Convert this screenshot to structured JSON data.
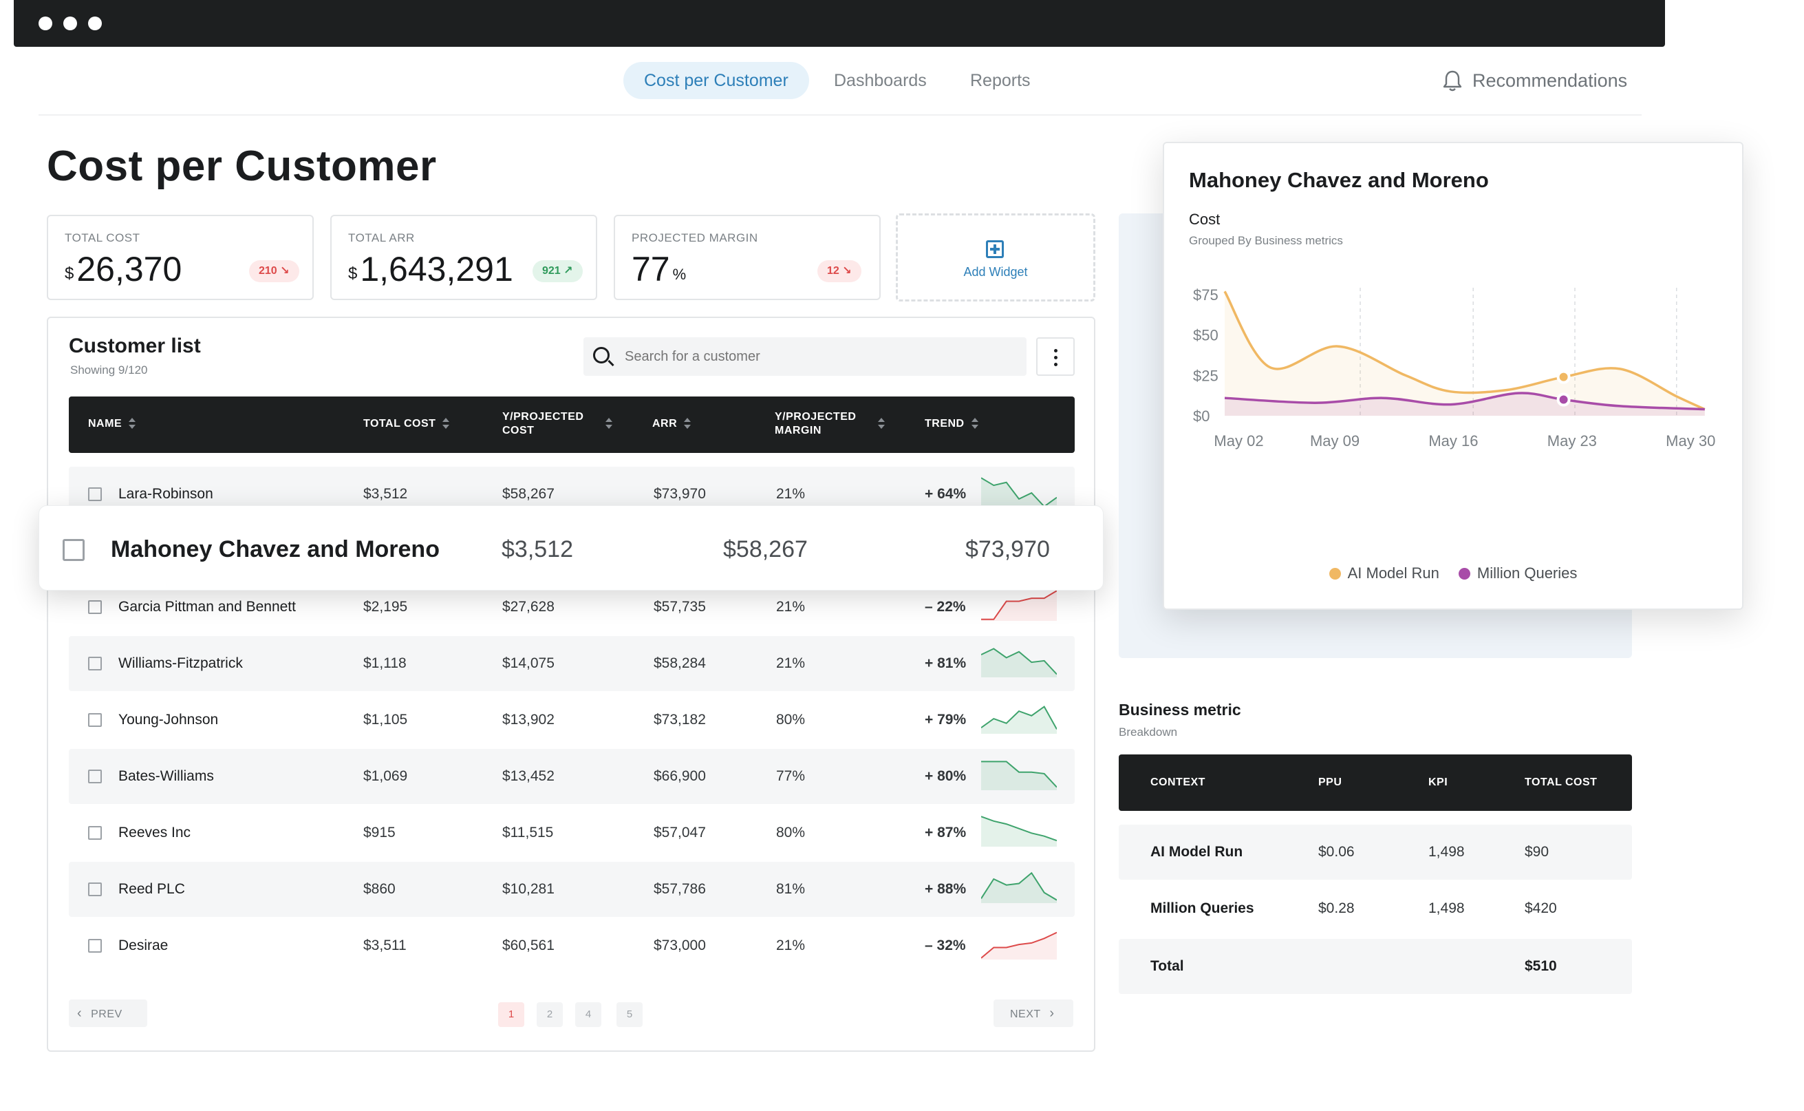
{
  "nav": {
    "tabs": [
      "Cost per Customer",
      "Dashboards",
      "Reports"
    ],
    "recommendations": "Recommendations"
  },
  "page": {
    "title": "Cost per Customer"
  },
  "stats": {
    "total_cost": {
      "label": "TOTAL COST",
      "currency": "$",
      "value": "26,370",
      "badge": "210",
      "trend": "down"
    },
    "total_arr": {
      "label": "TOTAL ARR",
      "currency": "$",
      "value": "1,643,291",
      "badge": "921",
      "trend": "up"
    },
    "projected_margin": {
      "label": "PROJECTED MARGIN",
      "value": "77",
      "unit": "%",
      "badge": "12",
      "trend": "down"
    },
    "add_widget": "Add Widget"
  },
  "customer_list": {
    "title": "Customer list",
    "showing": "Showing 9/120",
    "search_placeholder": "Search for a customer",
    "columns": [
      "NAME",
      "TOTAL COST",
      "Y/PROJECTED COST",
      "ARR",
      "Y/PROJECTED MARGIN",
      "TREND"
    ],
    "rows": [
      {
        "name": "Lara-Robinson",
        "total_cost": "$3,512",
        "projected_cost": "$58,267",
        "arr": "$73,970",
        "margin": "21%",
        "trend": "+ 64%",
        "dir": "pos",
        "spark": [
          40,
          30,
          34,
          12,
          20,
          2,
          14
        ]
      },
      {
        "name": "Garcia Pittman and Bennett",
        "total_cost": "$2,195",
        "projected_cost": "$27,628",
        "arr": "$57,735",
        "margin": "21%",
        "trend": "– 22%",
        "dir": "neg",
        "spark": [
          2,
          2,
          26,
          26,
          30,
          30,
          40
        ]
      },
      {
        "name": "Williams-Fitzpatrick",
        "total_cost": "$1,118",
        "projected_cost": "$14,075",
        "arr": "$58,284",
        "margin": "21%",
        "trend": "+ 81%",
        "dir": "pos",
        "spark": [
          30,
          38,
          26,
          34,
          20,
          22,
          4
        ]
      },
      {
        "name": "Young-Johnson",
        "total_cost": "$1,105",
        "projected_cost": "$13,902",
        "arr": "$73,182",
        "margin": "80%",
        "trend": "+ 79%",
        "dir": "pos",
        "spark": [
          8,
          20,
          14,
          30,
          24,
          36,
          6
        ]
      },
      {
        "name": "Bates-Williams",
        "total_cost": "$1,069",
        "projected_cost": "$13,452",
        "arr": "$66,900",
        "margin": "77%",
        "trend": "+ 80%",
        "dir": "pos",
        "spark": [
          38,
          38,
          38,
          24,
          24,
          22,
          4
        ]
      },
      {
        "name": "Reeves Inc",
        "total_cost": "$915",
        "projected_cost": "$11,515",
        "arr": "$57,047",
        "margin": "80%",
        "trend": "+ 87%",
        "dir": "pos",
        "spark": [
          40,
          34,
          30,
          24,
          18,
          14,
          8
        ]
      },
      {
        "name": "Reed PLC",
        "total_cost": "$860",
        "projected_cost": "$10,281",
        "arr": "$57,786",
        "margin": "81%",
        "trend": "+ 88%",
        "dir": "pos",
        "spark": [
          6,
          32,
          24,
          26,
          40,
          14,
          4
        ]
      },
      {
        "name": "Desirae",
        "total_cost": "$3,511",
        "projected_cost": "$60,561",
        "arr": "$73,000",
        "margin": "21%",
        "trend": "– 32%",
        "dir": "neg",
        "spark": [
          2,
          16,
          16,
          20,
          22,
          28,
          36
        ]
      }
    ],
    "highlight": {
      "name": "Mahoney Chavez and Moreno",
      "total_cost": "$3,512",
      "projected_cost": "$58,267",
      "arr": "$73,970"
    },
    "pagination": {
      "prev": "PREV",
      "next": "NEXT",
      "pages": [
        "1",
        "2",
        "4",
        "5"
      ],
      "current": "1"
    }
  },
  "chart": {
    "title": "Mahoney Chavez and Moreno",
    "subtitle": "Cost",
    "grouped_by": "Grouped By Business metrics"
  },
  "chart_data": {
    "type": "area",
    "x": [
      "May 02",
      "May 09",
      "May 16",
      "May 23",
      "May 30"
    ],
    "y_ticks": [
      "$75",
      "$50",
      "$25",
      "$0"
    ],
    "ylim": [
      0,
      75
    ],
    "series": [
      {
        "name": "AI Model Run",
        "color": "#f0b863",
        "x": [
          0,
          0.4,
          1.0,
          1.6,
          2.0,
          2.5,
          3.0,
          3.5,
          4.0,
          4.25
        ],
        "values": [
          77,
          30,
          43,
          25,
          15,
          16,
          24,
          29,
          12,
          4
        ]
      },
      {
        "name": "Million Queries",
        "color": "#a84ca8",
        "x": [
          0,
          0.8,
          1.4,
          2.0,
          2.6,
          3.0,
          3.5,
          4.25
        ],
        "values": [
          11,
          8,
          11,
          7,
          14,
          10,
          6,
          4
        ]
      }
    ],
    "legend": "bottom-center"
  },
  "business_metric": {
    "title": "Business metric",
    "subtitle": "Breakdown",
    "columns": [
      "CONTEXT",
      "PPU",
      "KPI",
      "TOTAL COST"
    ],
    "rows": [
      {
        "context": "AI Model Run",
        "ppu": "$0.06",
        "kpi": "1,498",
        "total": "$90"
      },
      {
        "context": "Million Queries",
        "ppu": "$0.28",
        "kpi": "1,498",
        "total": "$420"
      }
    ],
    "total": {
      "label": "Total",
      "value": "$510"
    }
  },
  "colors": {
    "accent": "#2d7fb8",
    "positive": "#2f9a5b",
    "negative": "#dd4a4a",
    "dark": "#1d1f20"
  }
}
